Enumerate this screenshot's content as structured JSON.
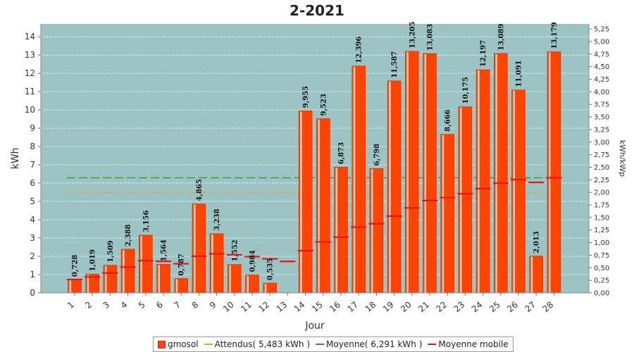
{
  "chart_data": {
    "type": "bar",
    "title": "2-2021",
    "xlabel": "Jour",
    "ylabel": "kWh",
    "y2label": "kWh/kWp",
    "ylim": [
      0,
      14.7
    ],
    "y2lim": [
      0,
      5.35
    ],
    "yticks": [
      "0",
      "1",
      "2",
      "3",
      "4",
      "5",
      "6",
      "7",
      "8",
      "9",
      "10",
      "11",
      "12",
      "13",
      "14"
    ],
    "y2ticks": [
      "0,00",
      "0,25",
      "0,50",
      "0,75",
      "1,00",
      "1,25",
      "1,50",
      "1,75",
      "2,00",
      "2,25",
      "2,50",
      "2,75",
      "3,00",
      "3,25",
      "3,50",
      "3,75",
      "4,00",
      "4,25",
      "4,50",
      "4,75",
      "5,00",
      "5,25"
    ],
    "categories": [
      "1",
      "2",
      "3",
      "4",
      "5",
      "6",
      "7",
      "8",
      "9",
      "10",
      "11",
      "12",
      "13",
      "14",
      "15",
      "16",
      "17",
      "18",
      "19",
      "20",
      "21",
      "22",
      "23",
      "24",
      "25",
      "26",
      "27",
      "28"
    ],
    "series": [
      {
        "name": "gmosol",
        "values": [
          0.728,
          1.019,
          1.509,
          2.388,
          3.156,
          1.564,
          0.787,
          4.865,
          3.238,
          1.552,
          0.984,
          0.535,
          null,
          9.955,
          9.523,
          6.873,
          12.396,
          6.798,
          11.587,
          13.205,
          13.083,
          8.666,
          10.175,
          12.197,
          13.089,
          11.091,
          2.013,
          13.179
        ],
        "labels": [
          "0,728",
          "1,019",
          "1,509",
          "2,388",
          "3,156",
          "1,564",
          "0,787",
          "4,865",
          "3,238",
          "1,552",
          "0,984",
          "0,535",
          "",
          "9,955",
          "9,523",
          "6,873",
          "12,396",
          "6,798",
          "11,587",
          "13,205",
          "13,083",
          "8,666",
          "10,175",
          "12,197",
          "13,089",
          "11,091",
          "2,013",
          "13,179"
        ],
        "color": "#ff4400"
      },
      {
        "name": "Attendus( 5,483 kWh )",
        "constant": 5.483,
        "color": "#ff9933"
      },
      {
        "name": "Moyenne( 6,291 kWh )",
        "constant": 6.291,
        "color": "#2a9a2a"
      },
      {
        "name": "Moyenne mobile",
        "values": [
          0.728,
          0.874,
          1.085,
          1.411,
          1.76,
          1.727,
          1.593,
          2.002,
          2.139,
          2.08,
          1.98,
          1.86,
          1.717,
          2.306,
          2.787,
          3.043,
          3.593,
          3.782,
          4.193,
          4.644,
          5.045,
          5.207,
          5.419,
          5.701,
          5.996,
          6.192,
          6.037,
          6.291
        ],
        "color": "#ee1111"
      }
    ],
    "grid": true,
    "legend": "bottom"
  },
  "legend": {
    "gmosol": "gmosol",
    "attendus": "Attendus( 5,483 kWh )",
    "moyenne": "Moyenne( 6,291 kWh )",
    "mobile": "Moyenne mobile"
  }
}
